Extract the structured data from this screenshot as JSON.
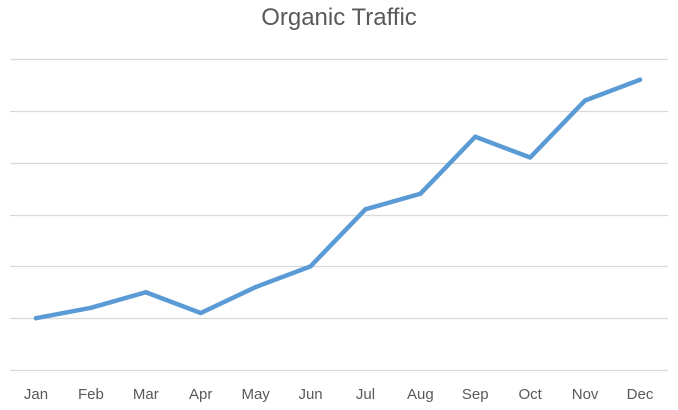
{
  "chart_data": {
    "type": "line",
    "title": "Organic Traffic",
    "xlabel": "",
    "ylabel": "",
    "categories": [
      "Jan",
      "Feb",
      "Mar",
      "Apr",
      "May",
      "Jun",
      "Jul",
      "Aug",
      "Sep",
      "Oct",
      "Nov",
      "Dec"
    ],
    "series": [
      {
        "values": [
          1.0,
          1.2,
          1.5,
          1.1,
          1.6,
          2.0,
          3.1,
          3.4,
          4.5,
          4.1,
          5.2,
          5.6
        ]
      }
    ],
    "ylim": [
      0,
      6
    ],
    "y_gridlines": [
      0,
      1,
      2,
      3,
      4,
      5,
      6
    ],
    "grid": true,
    "y_tick_labels_shown": false,
    "legend": "none",
    "colors": {
      "line": "#5b9bd5",
      "grid": "#d9d9d9",
      "text": "#595959"
    }
  }
}
